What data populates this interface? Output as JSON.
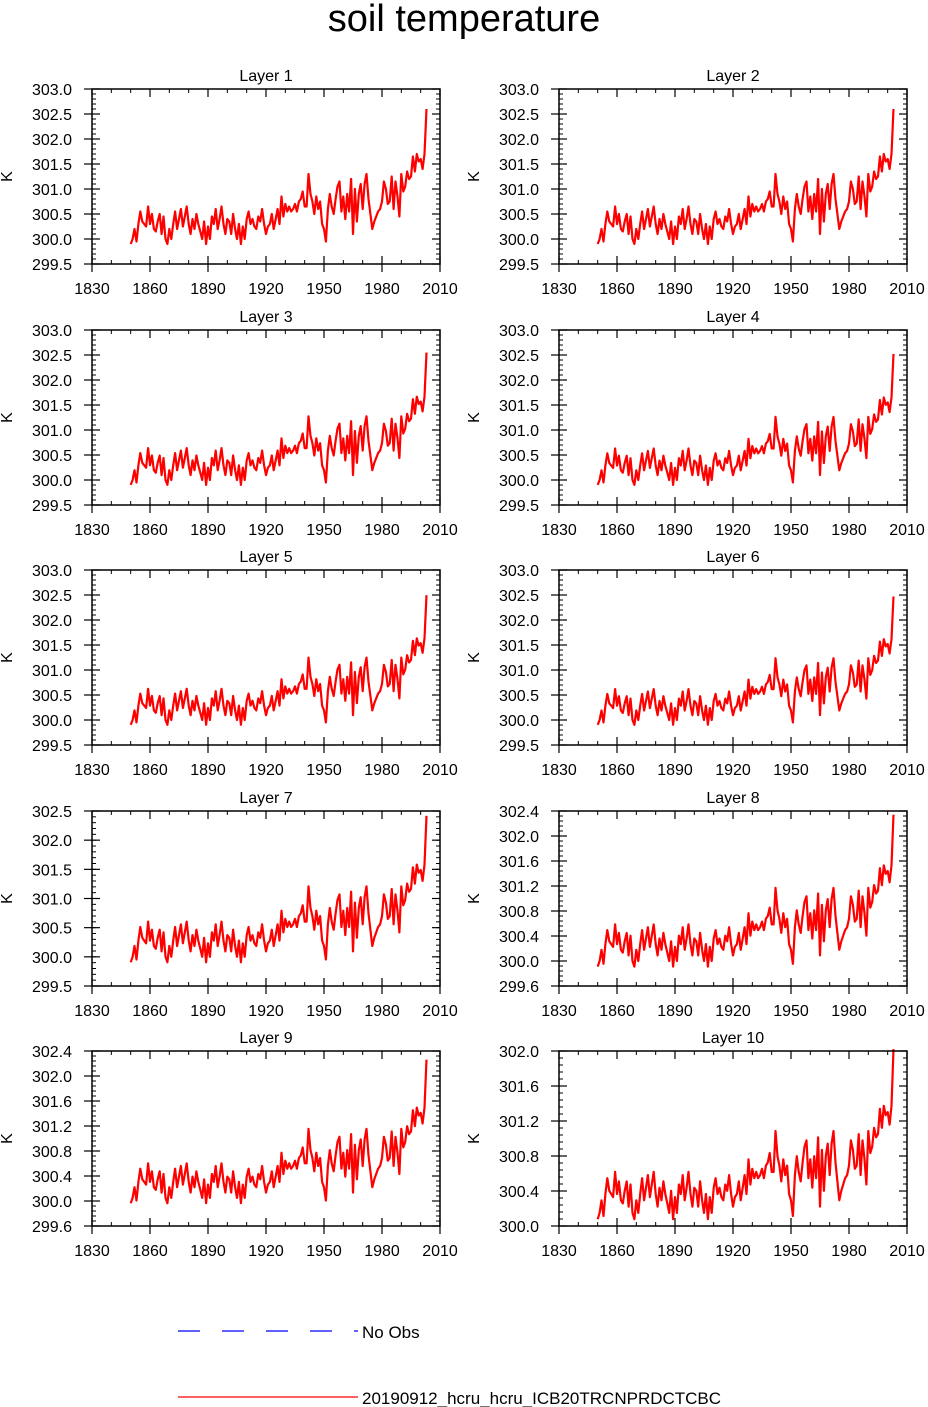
{
  "page_title": "soil temperature",
  "colors": {
    "model": "#ff0000",
    "obs": "#0000ff",
    "axis": "#000000"
  },
  "legend": {
    "obs_label": "No Obs",
    "model_label": "20190912_hcru_hcru_ICB20TRCNPRDCTCBC"
  },
  "chart_data": [
    {
      "type": "line",
      "title": "Layer 1",
      "ylabel": "K",
      "xlim": [
        1830,
        2010
      ],
      "ylim": [
        299.5,
        303.0
      ],
      "xticks": [
        1830,
        1860,
        1890,
        1920,
        1950,
        1980,
        2010
      ],
      "xtick_labels": [
        "1830",
        "1860",
        "1890",
        "1920",
        "1950",
        "1980",
        "2010"
      ],
      "yticks": [
        299.5,
        300.0,
        300.5,
        301.0,
        301.5,
        302.0,
        302.5,
        303.0
      ],
      "ytick_labels": [
        "299.5",
        "300.0",
        "300.5",
        "301.0",
        "301.5",
        "302.0",
        "302.5",
        "303.0"
      ],
      "offset": 0.0,
      "scale": 1.0
    },
    {
      "type": "line",
      "title": "Layer 2",
      "ylabel": "K",
      "xlim": [
        1830,
        2010
      ],
      "ylim": [
        299.5,
        303.0
      ],
      "xticks": [
        1830,
        1860,
        1890,
        1920,
        1950,
        1980,
        2010
      ],
      "xtick_labels": [
        "1830",
        "1860",
        "1890",
        "1920",
        "1950",
        "1980",
        "2010"
      ],
      "yticks": [
        299.5,
        300.0,
        300.5,
        301.0,
        301.5,
        302.0,
        302.5,
        303.0
      ],
      "ytick_labels": [
        "299.5",
        "300.0",
        "300.5",
        "301.0",
        "301.5",
        "302.0",
        "302.5",
        "303.0"
      ],
      "offset": 0.0,
      "scale": 1.0
    },
    {
      "type": "line",
      "title": "Layer 3",
      "ylabel": "K",
      "xlim": [
        1830,
        2010
      ],
      "ylim": [
        299.5,
        303.0
      ],
      "xticks": [
        1830,
        1860,
        1890,
        1920,
        1950,
        1980,
        2010
      ],
      "xtick_labels": [
        "1830",
        "1860",
        "1890",
        "1920",
        "1950",
        "1980",
        "2010"
      ],
      "yticks": [
        299.5,
        300.0,
        300.5,
        301.0,
        301.5,
        302.0,
        302.5,
        303.0
      ],
      "ytick_labels": [
        "299.5",
        "300.0",
        "300.5",
        "301.0",
        "301.5",
        "302.0",
        "302.5",
        "303.0"
      ],
      "offset": 0.0,
      "scale": 0.98
    },
    {
      "type": "line",
      "title": "Layer 4",
      "ylabel": "K",
      "xlim": [
        1830,
        2010
      ],
      "ylim": [
        299.5,
        303.0
      ],
      "xticks": [
        1830,
        1860,
        1890,
        1920,
        1950,
        1980,
        2010
      ],
      "xtick_labels": [
        "1830",
        "1860",
        "1890",
        "1920",
        "1950",
        "1980",
        "2010"
      ],
      "yticks": [
        299.5,
        300.0,
        300.5,
        301.0,
        301.5,
        302.0,
        302.5,
        303.0
      ],
      "ytick_labels": [
        "299.5",
        "300.0",
        "300.5",
        "301.0",
        "301.5",
        "302.0",
        "302.5",
        "303.0"
      ],
      "offset": 0.0,
      "scale": 0.97
    },
    {
      "type": "line",
      "title": "Layer 5",
      "ylabel": "K",
      "xlim": [
        1830,
        2010
      ],
      "ylim": [
        299.5,
        303.0
      ],
      "xticks": [
        1830,
        1860,
        1890,
        1920,
        1950,
        1980,
        2010
      ],
      "xtick_labels": [
        "1830",
        "1860",
        "1890",
        "1920",
        "1950",
        "1980",
        "2010"
      ],
      "yticks": [
        299.5,
        300.0,
        300.5,
        301.0,
        301.5,
        302.0,
        302.5,
        303.0
      ],
      "ytick_labels": [
        "299.5",
        "300.0",
        "300.5",
        "301.0",
        "301.5",
        "302.0",
        "302.5",
        "303.0"
      ],
      "offset": 0.0,
      "scale": 0.96
    },
    {
      "type": "line",
      "title": "Layer 6",
      "ylabel": "K",
      "xlim": [
        1830,
        2010
      ],
      "ylim": [
        299.5,
        303.0
      ],
      "xticks": [
        1830,
        1860,
        1890,
        1920,
        1950,
        1980,
        2010
      ],
      "xtick_labels": [
        "1830",
        "1860",
        "1890",
        "1920",
        "1950",
        "1980",
        "2010"
      ],
      "yticks": [
        299.5,
        300.0,
        300.5,
        301.0,
        301.5,
        302.0,
        302.5,
        303.0
      ],
      "ytick_labels": [
        "299.5",
        "300.0",
        "300.5",
        "301.0",
        "301.5",
        "302.0",
        "302.5",
        "303.0"
      ],
      "offset": 0.0,
      "scale": 0.95
    },
    {
      "type": "line",
      "title": "Layer 7",
      "ylabel": "K",
      "xlim": [
        1830,
        2010
      ],
      "ylim": [
        299.5,
        302.5
      ],
      "xticks": [
        1830,
        1860,
        1890,
        1920,
        1950,
        1980,
        2010
      ],
      "xtick_labels": [
        "1830",
        "1860",
        "1890",
        "1920",
        "1950",
        "1980",
        "2010"
      ],
      "yticks": [
        299.5,
        300.0,
        300.5,
        301.0,
        301.5,
        302.0,
        302.5
      ],
      "ytick_labels": [
        "299.5",
        "300.0",
        "300.5",
        "301.0",
        "301.5",
        "302.0",
        "302.5"
      ],
      "offset": 0.0,
      "scale": 0.93
    },
    {
      "type": "line",
      "title": "Layer 8",
      "ylabel": "K",
      "xlim": [
        1830,
        2010
      ],
      "ylim": [
        299.6,
        302.4
      ],
      "xticks": [
        1830,
        1860,
        1890,
        1920,
        1950,
        1980,
        2010
      ],
      "xtick_labels": [
        "1830",
        "1860",
        "1890",
        "1920",
        "1950",
        "1980",
        "2010"
      ],
      "yticks": [
        299.6,
        300.0,
        300.4,
        300.8,
        301.2,
        301.6,
        302.0,
        302.4
      ],
      "ytick_labels": [
        "299.6",
        "300.0",
        "300.4",
        "300.8",
        "301.2",
        "301.6",
        "302.0",
        "302.4"
      ],
      "offset": 0.0,
      "scale": 0.9
    },
    {
      "type": "line",
      "title": "Layer 9",
      "ylabel": "K",
      "xlim": [
        1830,
        2010
      ],
      "ylim": [
        299.6,
        302.4
      ],
      "xticks": [
        1830,
        1860,
        1890,
        1920,
        1950,
        1980,
        2010
      ],
      "xtick_labels": [
        "1830",
        "1860",
        "1890",
        "1920",
        "1950",
        "1980",
        "2010"
      ],
      "yticks": [
        299.6,
        300.0,
        300.4,
        300.8,
        301.2,
        301.6,
        302.0,
        302.4
      ],
      "ytick_labels": [
        "299.6",
        "300.0",
        "300.4",
        "300.8",
        "301.2",
        "301.6",
        "302.0",
        "302.4"
      ],
      "offset": 0.05,
      "scale": 0.85
    },
    {
      "type": "line",
      "title": "Layer 10",
      "ylabel": "K",
      "xlim": [
        1830,
        2010
      ],
      "ylim": [
        300.0,
        302.0
      ],
      "xticks": [
        1830,
        1860,
        1890,
        1920,
        1950,
        1980,
        2010
      ],
      "xtick_labels": [
        "1830",
        "1860",
        "1890",
        "1920",
        "1950",
        "1980",
        "2010"
      ],
      "yticks": [
        300.0,
        300.4,
        300.8,
        301.2,
        301.6,
        302.0
      ],
      "ytick_labels": [
        "300.0",
        "300.4",
        "300.8",
        "301.2",
        "301.6",
        "302.0"
      ],
      "offset": 0.15,
      "scale": 0.72
    }
  ],
  "base_series": {
    "start_year": 1850,
    "values": [
      299.9,
      300.0,
      300.2,
      299.95,
      300.3,
      300.55,
      300.35,
      300.3,
      300.25,
      300.65,
      300.3,
      300.5,
      300.2,
      300.15,
      300.35,
      300.5,
      300.1,
      300.45,
      300.0,
      299.9,
      300.2,
      300.0,
      300.3,
      300.55,
      300.2,
      300.4,
      300.6,
      300.25,
      300.45,
      300.65,
      300.3,
      300.1,
      300.4,
      300.2,
      300.5,
      300.3,
      300.15,
      300.0,
      300.35,
      299.9,
      300.25,
      300.0,
      300.45,
      300.3,
      300.6,
      300.2,
      300.4,
      300.65,
      300.3,
      300.1,
      300.4,
      300.35,
      300.1,
      300.5,
      300.2,
      300.0,
      300.3,
      299.9,
      300.25,
      300.0,
      300.4,
      300.55,
      300.3,
      300.4,
      300.25,
      300.2,
      300.45,
      300.35,
      300.6,
      300.3,
      300.1,
      300.25,
      300.3,
      300.5,
      300.2,
      300.4,
      300.6,
      300.3,
      300.85,
      300.45,
      300.7,
      300.55,
      300.65,
      300.55,
      300.6,
      300.7,
      300.55,
      300.75,
      300.8,
      300.95,
      300.65,
      300.65,
      301.3,
      300.9,
      300.75,
      300.5,
      300.85,
      300.6,
      300.75,
      300.3,
      300.2,
      299.95,
      300.6,
      300.9,
      300.65,
      300.5,
      300.8,
      301.05,
      301.15,
      300.55,
      300.85,
      300.4,
      300.9,
      300.55,
      301.2,
      300.1,
      301.0,
      300.35,
      300.9,
      301.1,
      300.6,
      301.1,
      301.3,
      300.8,
      300.5,
      300.2,
      300.35,
      300.45,
      300.55,
      300.6,
      300.75,
      301.15,
      301.0,
      300.7,
      300.75,
      301.25,
      300.6,
      301.15,
      300.85,
      300.45,
      301.3,
      300.95,
      301.05,
      301.35,
      301.2,
      301.25,
      301.65,
      301.35,
      301.7,
      301.55,
      301.6,
      301.4,
      301.7,
      302.6
    ]
  }
}
